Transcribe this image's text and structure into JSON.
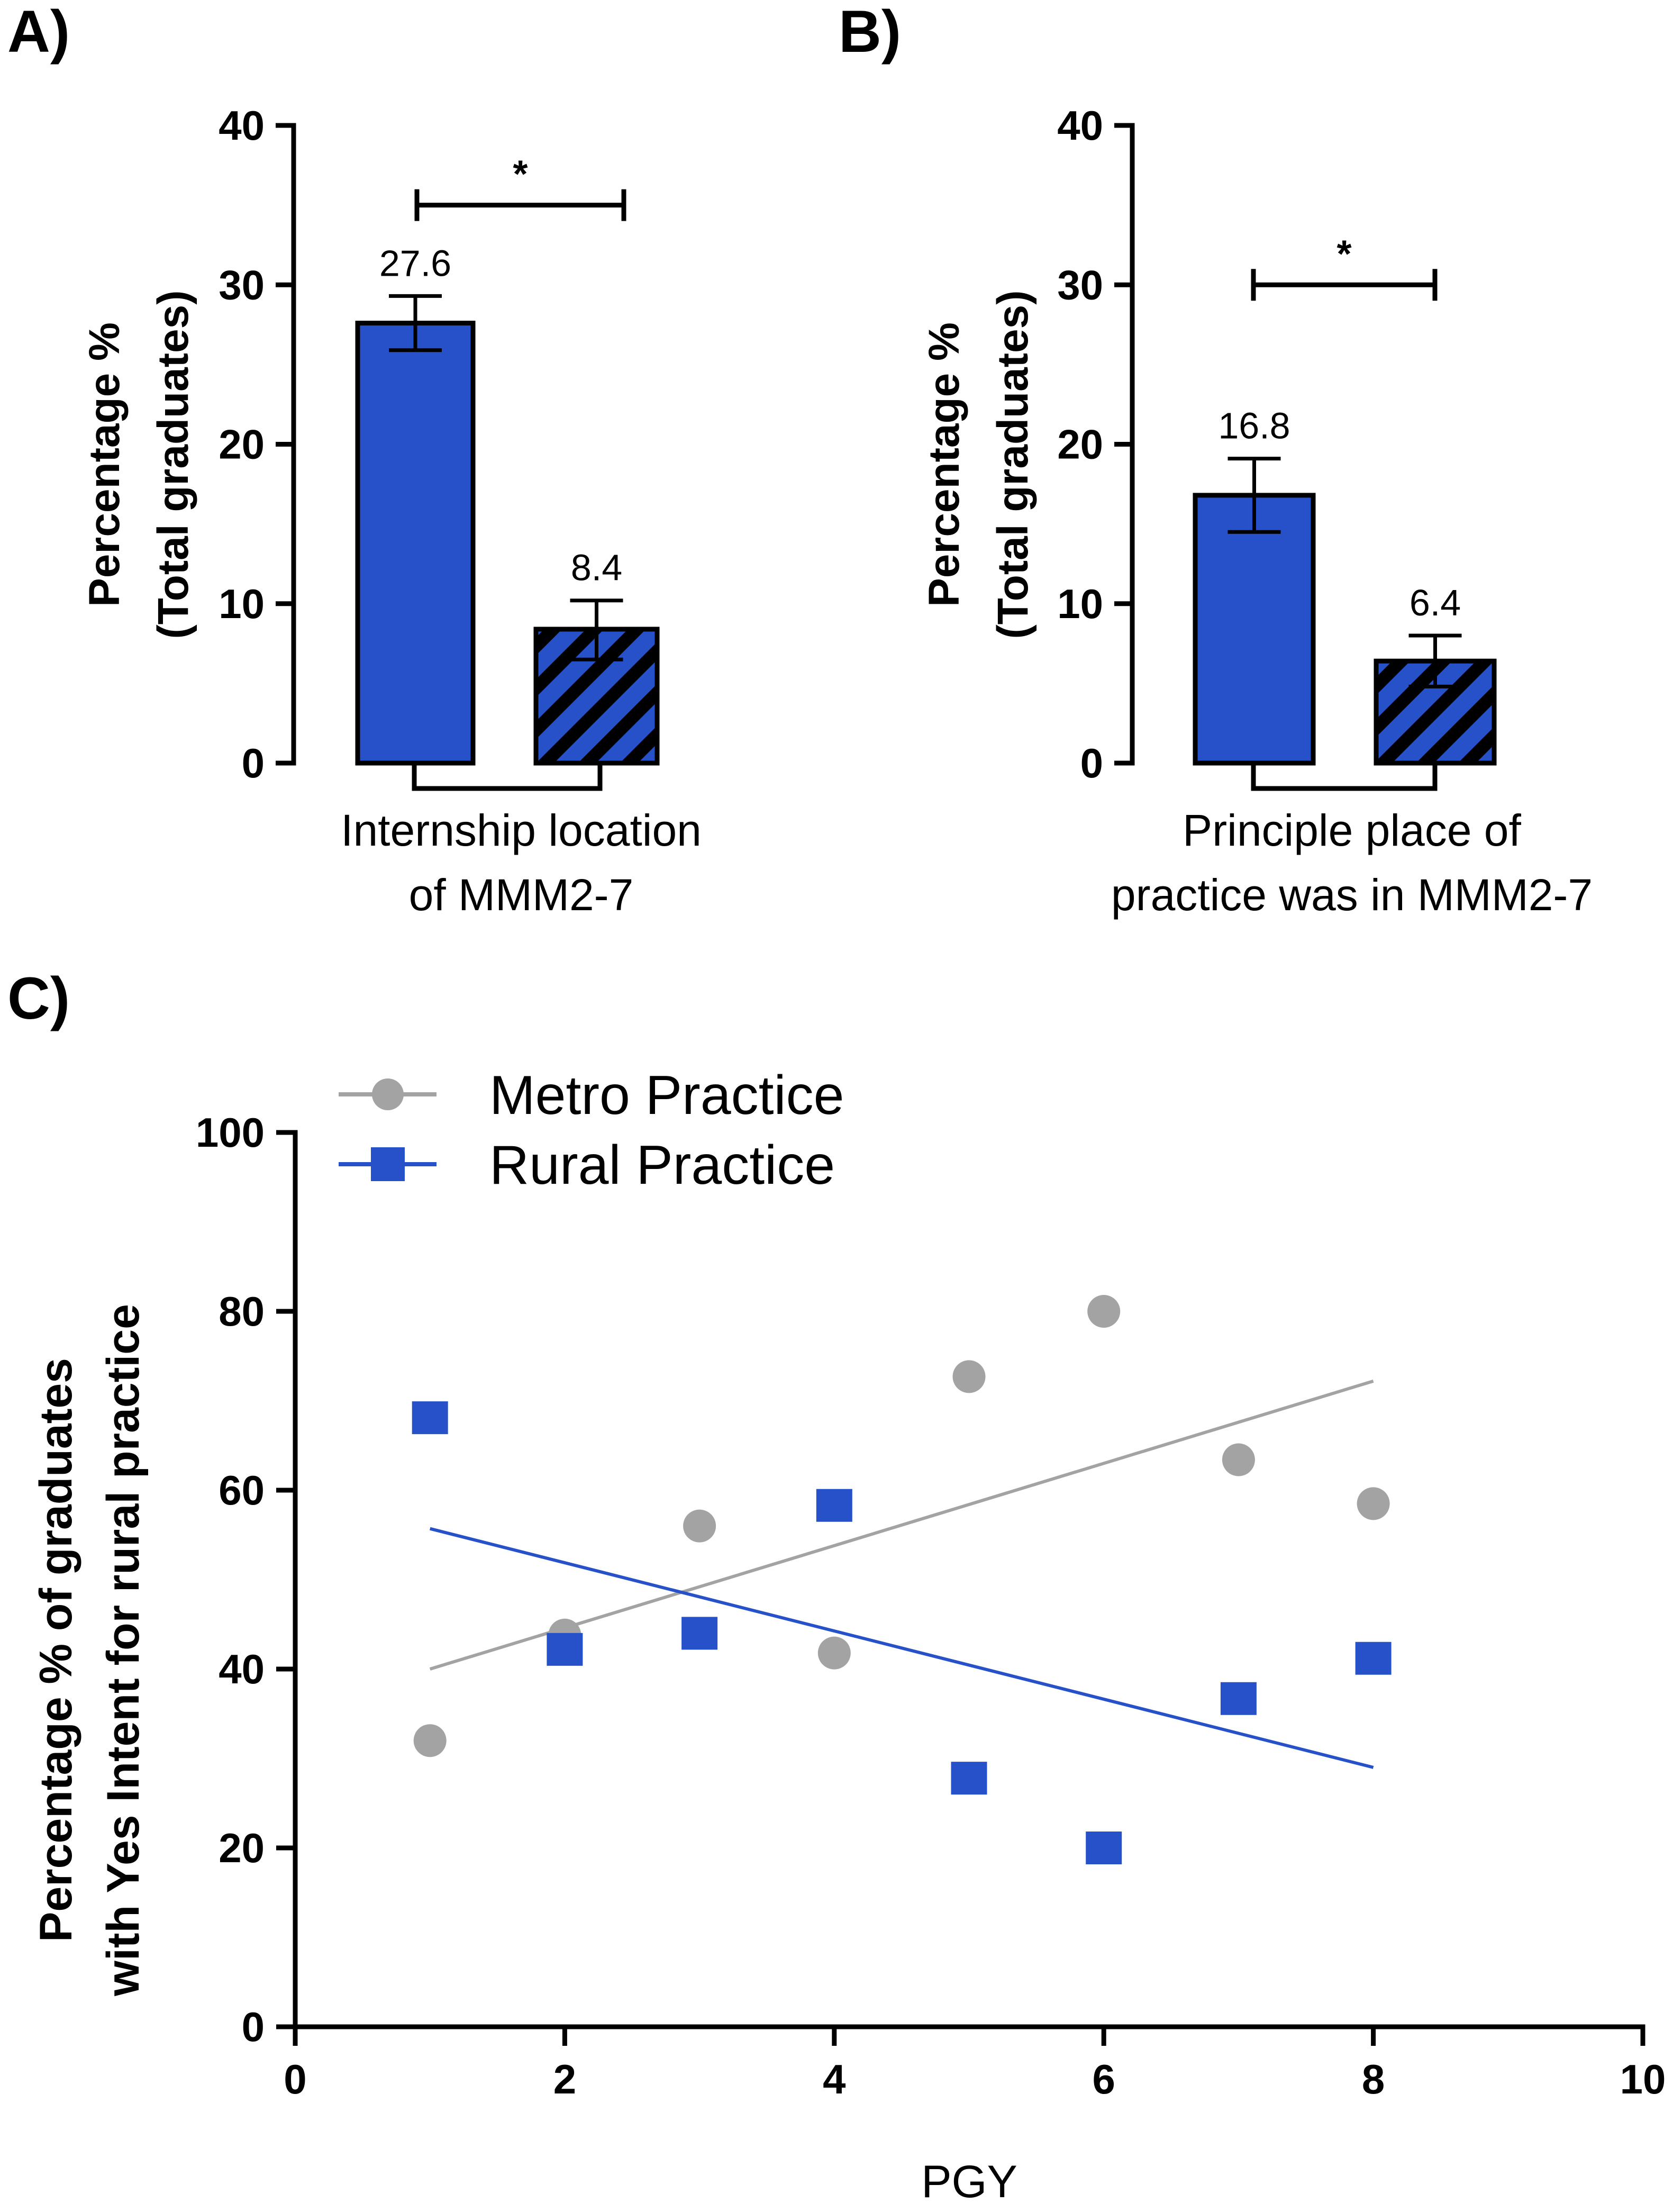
{
  "colors": {
    "rural_blue": "#2651C9",
    "metro_gray": "#A3A3A3",
    "black": "#000000"
  },
  "chart_data": [
    {
      "id": "A",
      "panel_label": "A)",
      "type": "bar",
      "ylabel_line1": "Percentage %",
      "ylabel_line2": "(Total graduates)",
      "xlabel_line1": "Internship location",
      "xlabel_line2": "of MMM2-7",
      "ylim": [
        0,
        40
      ],
      "yticks": [
        0,
        10,
        20,
        30,
        40
      ],
      "bars": [
        {
          "value": 27.6,
          "label": "27.6",
          "err_low": 25.9,
          "err_high": 29.3,
          "pattern": "solid"
        },
        {
          "value": 8.4,
          "label": "8.4",
          "err_low": 6.5,
          "err_high": 10.2,
          "pattern": "hatched"
        }
      ],
      "significance": {
        "text": "*",
        "y": 35
      }
    },
    {
      "id": "B",
      "panel_label": "B)",
      "type": "bar",
      "ylabel_line1": "Percentage %",
      "ylabel_line2": "(Total graduates)",
      "xlabel_line1": "Principle place of",
      "xlabel_line2": "practice was in MMM2-7",
      "ylim": [
        0,
        40
      ],
      "yticks": [
        0,
        10,
        20,
        30,
        40
      ],
      "bars": [
        {
          "value": 16.8,
          "label": "16.8",
          "err_low": 14.5,
          "err_high": 19.1,
          "pattern": "solid"
        },
        {
          "value": 6.4,
          "label": "6.4",
          "err_low": 4.8,
          "err_high": 8.0,
          "pattern": "hatched"
        }
      ],
      "significance": {
        "text": "*",
        "y": 30
      }
    },
    {
      "id": "C",
      "panel_label": "C)",
      "type": "scatter",
      "ylabel_line1": "Percentage % of graduates",
      "ylabel_line2": "with Yes Intent for rural practice",
      "xlabel": "PGY",
      "xlim": [
        0,
        10
      ],
      "ylim": [
        0,
        100
      ],
      "xticks": [
        0,
        2,
        4,
        6,
        8,
        10
      ],
      "yticks": [
        0,
        20,
        40,
        60,
        80,
        100
      ],
      "series": [
        {
          "name": "Metro Practice",
          "marker": "circle",
          "x": [
            1,
            2,
            3,
            4,
            5,
            6,
            7,
            8
          ],
          "y": [
            32,
            43.8,
            56,
            41.8,
            72.7,
            80,
            63.4,
            58.5
          ],
          "trend": {
            "x": [
              1,
              8
            ],
            "y": [
              40,
              72.2
            ]
          }
        },
        {
          "name": "Rural Practice",
          "marker": "square",
          "x": [
            1,
            2,
            3,
            4,
            5,
            6,
            7,
            8
          ],
          "y": [
            68.1,
            42.2,
            44,
            58.3,
            27.8,
            20,
            36.7,
            41.2
          ],
          "trend": {
            "x": [
              1,
              8
            ],
            "y": [
              55.7,
              29
            ]
          }
        }
      ],
      "legend_position": "top-left"
    }
  ]
}
